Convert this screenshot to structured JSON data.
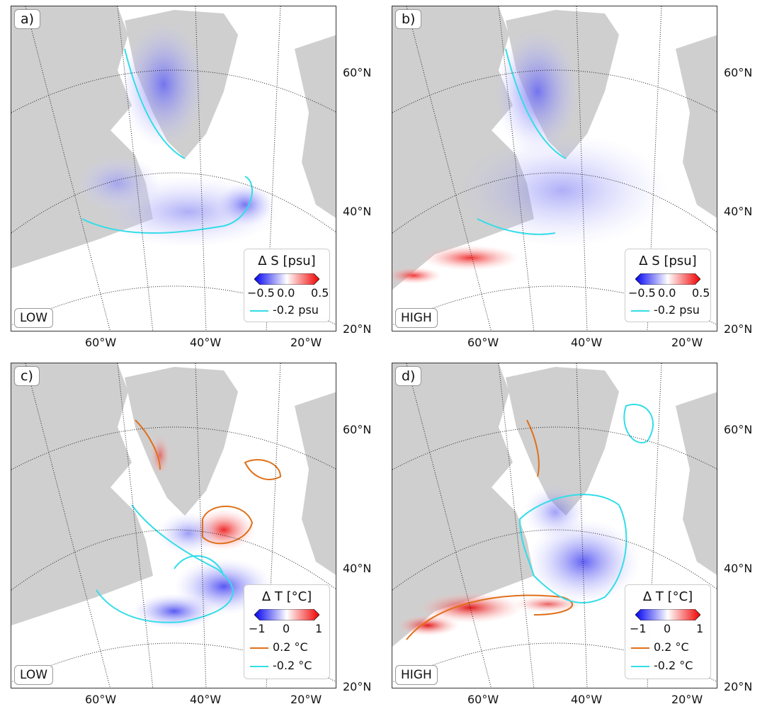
{
  "panels": [
    {
      "label": "a)",
      "resolution": "LOW",
      "legend": {
        "title": "Δ S [psu]",
        "ticks": [
          "−0.5",
          "0.0",
          "0.5"
        ],
        "contours": [
          {
            "label": "-0.2 psu",
            "color": "#33dde8"
          }
        ]
      },
      "lat_labels": [
        "60°N",
        "40°N",
        "20°N"
      ],
      "lon_labels": [
        "60°W",
        "40°W",
        "20°W"
      ]
    },
    {
      "label": "b)",
      "resolution": "HIGH",
      "legend": {
        "title": "Δ S [psu]",
        "ticks": [
          "−0.5",
          "0.0",
          "0.5"
        ],
        "contours": [
          {
            "label": "-0.2 psu",
            "color": "#33dde8"
          }
        ]
      },
      "lat_labels": [
        "60°N",
        "40°N",
        "20°N"
      ],
      "lon_labels": [
        "60°W",
        "40°W",
        "20°W"
      ]
    },
    {
      "label": "c)",
      "resolution": "LOW",
      "legend": {
        "title": "Δ T [°C]",
        "ticks": [
          "−1",
          "0",
          "1"
        ],
        "contours": [
          {
            "label": "0.2 °C",
            "color": "#e0701a"
          },
          {
            "label": "-0.2 °C",
            "color": "#33dde8"
          }
        ]
      },
      "lat_labels": [
        "60°N",
        "40°N",
        "20°N"
      ],
      "lon_labels": [
        "60°W",
        "40°W",
        "20°W"
      ]
    },
    {
      "label": "d)",
      "resolution": "HIGH",
      "legend": {
        "title": "Δ T [°C]",
        "ticks": [
          "−1",
          "0",
          "1"
        ],
        "contours": [
          {
            "label": "0.2 °C",
            "color": "#e0701a"
          },
          {
            "label": "-0.2 °C",
            "color": "#33dde8"
          }
        ]
      },
      "lat_labels": [
        "60°N",
        "40°N",
        "20°N"
      ],
      "lon_labels": [
        "60°W",
        "40°W",
        "20°W"
      ]
    }
  ],
  "colors": {
    "land": "#cfcfcf",
    "negative": "#2a2af0",
    "positive": "#ee2020",
    "contour_neg": "#33dde8",
    "contour_pos": "#e0701a"
  }
}
